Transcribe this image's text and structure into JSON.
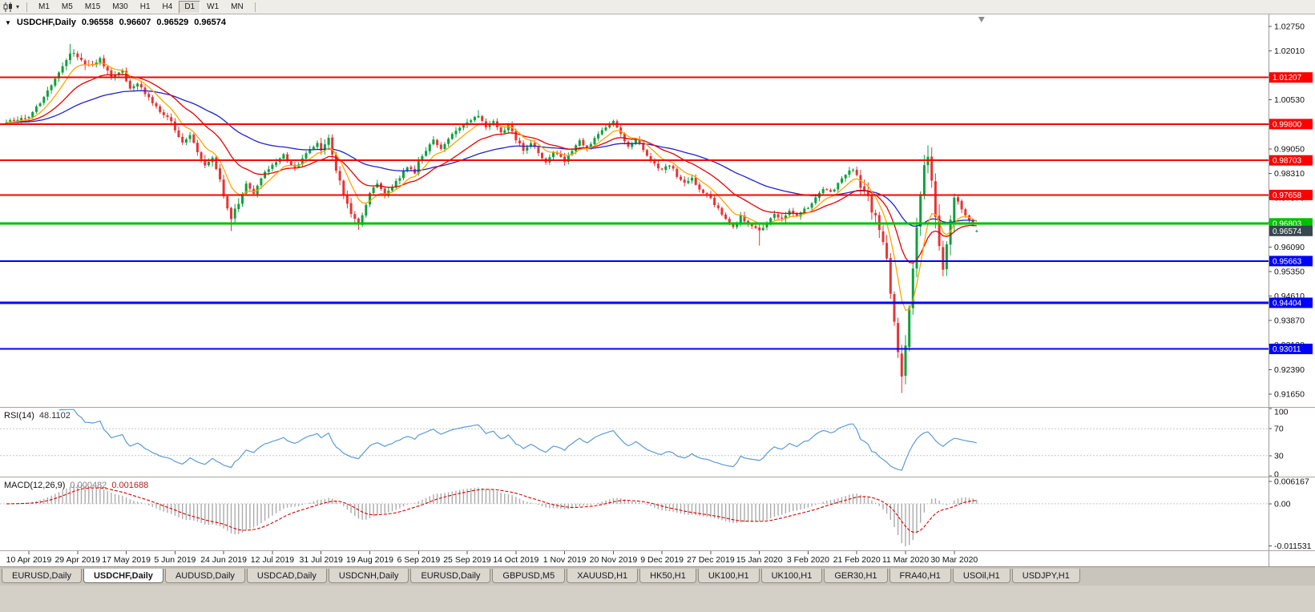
{
  "icons": {
    "chart_type": "candlestick-chart-icon",
    "dropdown_arrow": "▾",
    "chart_menu_arrow": "▼"
  },
  "toolbar": {
    "timeframes": [
      {
        "label": "M1"
      },
      {
        "label": "M5"
      },
      {
        "label": "M15"
      },
      {
        "label": "M30"
      },
      {
        "label": "H1"
      },
      {
        "label": "H4"
      },
      {
        "label": "D1",
        "active": true
      },
      {
        "label": "W1"
      },
      {
        "label": "MN"
      }
    ]
  },
  "chart_data": {
    "type": "candlestick",
    "title": "USDCHF,Daily",
    "symbol": "USDCHF",
    "period": "Daily",
    "ohlc": {
      "open": "0.96558",
      "high": "0.96607",
      "low": "0.96529",
      "close": "0.96574"
    },
    "y_axis": {
      "min": 0.9126,
      "max": 1.0311,
      "tick_step": 0.0074,
      "ticks": [
        1.0275,
        1.0201,
        1.0127,
        1.0053,
        0.9979,
        0.9905,
        0.9831,
        0.9757,
        0.9683,
        0.9609,
        0.9535,
        0.9461,
        0.9387,
        0.9313,
        0.9239,
        0.9165
      ]
    },
    "x_axis": {
      "labels": [
        "10 Apr 2019",
        "29 Apr 2019",
        "17 May 2019",
        "5 Jun 2019",
        "24 Jun 2019",
        "12 Jul 2019",
        "31 Jul 2019",
        "19 Aug 2019",
        "6 Sep 2019",
        "25 Sep 2019",
        "14 Oct 2019",
        "1 Nov 2019",
        "20 Nov 2019",
        "9 Dec 2019",
        "27 Dec 2019",
        "15 Jan 2020",
        "3 Feb 2020",
        "21 Feb 2020",
        "11 Mar 2020",
        "30 Mar 2020"
      ],
      "first_label_candle_index": 6,
      "candles_per_label": 13
    },
    "candle_count": 260,
    "candle_colors": {
      "up": "#0FA03C",
      "down": "#E53535"
    },
    "price_path_anchors": [
      [
        0,
        0.9985
      ],
      [
        6,
        1.0
      ],
      [
        10,
        1.006
      ],
      [
        14,
        1.013
      ],
      [
        17,
        1.02
      ],
      [
        19,
        1.0185
      ],
      [
        22,
        1.0155
      ],
      [
        25,
        1.0175
      ],
      [
        28,
        1.012
      ],
      [
        31,
        1.014
      ],
      [
        33,
        1.0085
      ],
      [
        35,
        1.01
      ],
      [
        38,
        1.006
      ],
      [
        41,
        1.002
      ],
      [
        44,
        0.9985
      ],
      [
        45,
        0.996
      ],
      [
        47,
        0.992
      ],
      [
        49,
        0.995
      ],
      [
        51,
        0.99
      ],
      [
        53,
        0.9855
      ],
      [
        55,
        0.988
      ],
      [
        57,
        0.981
      ],
      [
        58,
        0.9765
      ],
      [
        60,
        0.97
      ],
      [
        62,
        0.9745
      ],
      [
        64,
        0.98
      ],
      [
        66,
        0.977
      ],
      [
        68,
        0.982
      ],
      [
        71,
        0.9855
      ],
      [
        74,
        0.9885
      ],
      [
        77,
        0.9845
      ],
      [
        80,
        0.989
      ],
      [
        83,
        0.992
      ],
      [
        84,
        0.99
      ],
      [
        86,
        0.9938
      ],
      [
        88,
        0.984
      ],
      [
        90,
        0.977
      ],
      [
        92,
        0.9715
      ],
      [
        94,
        0.9682
      ],
      [
        96,
        0.973
      ],
      [
        97,
        0.977
      ],
      [
        99,
        0.98
      ],
      [
        101,
        0.976
      ],
      [
        103,
        0.979
      ],
      [
        105,
        0.982
      ],
      [
        107,
        0.985
      ],
      [
        109,
        0.983
      ],
      [
        110,
        0.9868
      ],
      [
        112,
        0.99
      ],
      [
        114,
        0.9935
      ],
      [
        116,
        0.9905
      ],
      [
        118,
        0.994
      ],
      [
        120,
        0.9962
      ],
      [
        123,
        0.9988
      ],
      [
        126,
        1.0008
      ],
      [
        128,
        0.997
      ],
      [
        130,
        0.999
      ],
      [
        132,
        0.9952
      ],
      [
        134,
        0.9975
      ],
      [
        136,
        0.9935
      ],
      [
        138,
        0.99
      ],
      [
        140,
        0.9925
      ],
      [
        142,
        0.989
      ],
      [
        144,
        0.9862
      ],
      [
        146,
        0.9895
      ],
      [
        149,
        0.987
      ],
      [
        151,
        0.99
      ],
      [
        153,
        0.993
      ],
      [
        155,
        0.9905
      ],
      [
        157,
        0.9935
      ],
      [
        159,
        0.9958
      ],
      [
        162,
        0.9985
      ],
      [
        164,
        0.995
      ],
      [
        166,
        0.9915
      ],
      [
        168,
        0.9935
      ],
      [
        170,
        0.99
      ],
      [
        172,
        0.9868
      ],
      [
        175,
        0.984
      ],
      [
        177,
        0.9858
      ],
      [
        179,
        0.9825
      ],
      [
        181,
        0.98
      ],
      [
        183,
        0.9815
      ],
      [
        185,
        0.9785
      ],
      [
        188,
        0.9755
      ],
      [
        190,
        0.9725
      ],
      [
        192,
        0.969
      ],
      [
        194,
        0.9668
      ],
      [
        196,
        0.97
      ],
      [
        198,
        0.9676
      ],
      [
        201,
        0.9655
      ],
      [
        203,
        0.9685
      ],
      [
        205,
        0.971
      ],
      [
        207,
        0.9692
      ],
      [
        209,
        0.972
      ],
      [
        211,
        0.9702
      ],
      [
        214,
        0.973
      ],
      [
        216,
        0.976
      ],
      [
        218,
        0.9788
      ],
      [
        220,
        0.9772
      ],
      [
        222,
        0.98
      ],
      [
        224,
        0.9828
      ],
      [
        226,
        0.9845
      ],
      [
        227,
        0.9822
      ],
      [
        229,
        0.978
      ],
      [
        231,
        0.9722
      ],
      [
        233,
        0.9668
      ],
      [
        235,
        0.956
      ],
      [
        236,
        0.948
      ],
      [
        237,
        0.939
      ],
      [
        238,
        0.9285
      ],
      [
        239,
        0.9215
      ],
      [
        240,
        0.931
      ],
      [
        241,
        0.943
      ],
      [
        242,
        0.955
      ],
      [
        243,
        0.9665
      ],
      [
        244,
        0.978
      ],
      [
        245,
        0.9868
      ],
      [
        246,
        0.9888
      ],
      [
        247,
        0.982
      ],
      [
        248,
        0.9705
      ],
      [
        249,
        0.9605
      ],
      [
        250,
        0.9535
      ],
      [
        251,
        0.961
      ],
      [
        252,
        0.97
      ],
      [
        253,
        0.9768
      ],
      [
        255,
        0.972
      ],
      [
        257,
        0.9692
      ],
      [
        259,
        0.96574
      ]
    ],
    "moving_averages": [
      {
        "name": "fast-ma",
        "period": 8,
        "color": "#FFA500"
      },
      {
        "name": "medium-ma",
        "period": 21,
        "color": "#E80000"
      },
      {
        "name": "slow-ma",
        "period": 55,
        "color": "#2222CC"
      }
    ],
    "horizontal_lines": [
      {
        "value": 1.01207,
        "label": "1.01207",
        "color": "#FF0000",
        "width": 2
      },
      {
        "value": 0.998,
        "label": "0.99800",
        "color": "#FF0000",
        "width": 2
      },
      {
        "value": 0.98703,
        "label": "0.98703",
        "color": "#FF0000",
        "width": 2
      },
      {
        "value": 0.97658,
        "label": "0.97658",
        "color": "#FF0000",
        "width": 2
      },
      {
        "value": 0.96803,
        "label": "0.96803",
        "color": "#00C000",
        "width": 3
      },
      {
        "value": 0.95663,
        "label": "0.95663",
        "color": "#0000FF",
        "width": 2
      },
      {
        "value": 0.94404,
        "label": "0.94404",
        "color": "#0000FF",
        "width": 3
      },
      {
        "value": 0.93011,
        "label": "0.93011",
        "color": "#0000FF",
        "width": 2
      }
    ],
    "last_price": {
      "value": 0.96574,
      "label": "0.96574",
      "badge_color": "#37474F"
    },
    "indicators": {
      "rsi": {
        "name": "RSI(14)",
        "period": 14,
        "value": "48.1102",
        "color": "#5B9BD5",
        "levels": [
          70,
          30
        ],
        "scale_min": 0,
        "scale_max": 100,
        "axis_labels": [
          {
            "value": 100,
            "label": "100"
          },
          {
            "value": 70,
            "label": "70"
          },
          {
            "value": 30,
            "label": "30"
          },
          {
            "value": 0,
            "label": "0"
          }
        ]
      },
      "macd": {
        "name": "MACD(12,26,9)",
        "fast": 12,
        "slow": 26,
        "signal_period": 9,
        "value": "0.000482",
        "signal": "0.001688",
        "histogram_color": "#ABABAB",
        "signal_color": "#DD0000",
        "scale_max": 0.007,
        "scale_min": -0.0125,
        "axis_labels": [
          {
            "value": 0.006167,
            "label": "0.006167"
          },
          {
            "value": 0,
            "label": "0.00"
          },
          {
            "value": -0.011531,
            "label": "-0.011531"
          }
        ]
      }
    }
  },
  "tabs": {
    "items": [
      {
        "label": "EURUSD,Daily"
      },
      {
        "label": "USDCHF,Daily",
        "active": true
      },
      {
        "label": "AUDUSD,Daily"
      },
      {
        "label": "USDCAD,Daily"
      },
      {
        "label": "USDCNH,Daily"
      },
      {
        "label": "EURUSD,Daily"
      },
      {
        "label": "GBPUSD,M5"
      },
      {
        "label": "XAUUSD,H1"
      },
      {
        "label": "HK50,H1"
      },
      {
        "label": "UK100,H1"
      },
      {
        "label": "UK100,H1"
      },
      {
        "label": "GER30,H1"
      },
      {
        "label": "FRA40,H1"
      },
      {
        "label": "USOil,H1"
      },
      {
        "label": "USDJPY,H1"
      }
    ]
  }
}
